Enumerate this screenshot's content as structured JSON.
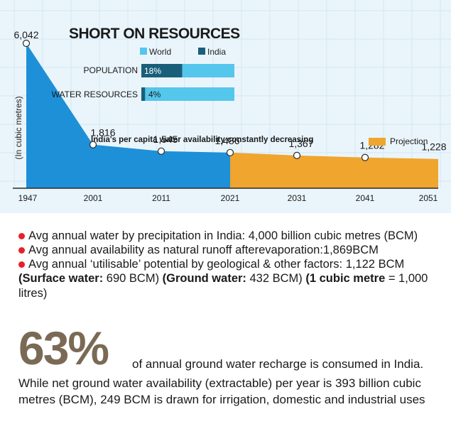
{
  "chart_data": {
    "type": "area",
    "title": "SHORT ON RESOURCES",
    "subtitle": "India's per capita water availability constantly decreasing",
    "ylabel": "(In cubic metres)",
    "x": [
      "1947",
      "2001",
      "2011",
      "2021",
      "2031",
      "2041",
      "2051"
    ],
    "values": [
      6042,
      1816,
      1545,
      1486,
      1367,
      1282,
      1228
    ],
    "value_labels": [
      "6,042",
      "1,816",
      "1,545",
      "1,486",
      "1,367",
      "1,282",
      "1,228"
    ],
    "projection_from": "2021",
    "projection_label": "Projection",
    "ylim": [
      0,
      6042
    ],
    "colors": {
      "actual": "#1e90d8",
      "projection": "#efa52e"
    },
    "inset": {
      "legend": [
        {
          "name": "World",
          "color": "#55c6ec"
        },
        {
          "name": "India",
          "color": "#1a5f7a"
        }
      ],
      "bars": [
        {
          "label": "POPULATION",
          "india_pct": 18,
          "pct_label": "18%"
        },
        {
          "label": "WATER RESOURCES",
          "india_pct": 4,
          "pct_label": "4%"
        }
      ]
    }
  },
  "bullets": [
    "Avg annual water by precipitation in India: 4,000 billion cubic metres (BCM)",
    "Avg annual availability as natural runoff afterevaporation:1,869BCM",
    "Avg annual ‘utilisable’ potential by geological & other factors: 1,122 BCM"
  ],
  "extra": {
    "surface_label": "(Surface water:",
    "surface_value": " 690 BCM)",
    "ground_label": " (Ground water:",
    "ground_value": " 432 BCM)",
    "cubic_label": " (1 cubic metre",
    "cubic_value": " = 1,000 litres)"
  },
  "stat": {
    "big": "63%",
    "text_first": "of annual ground water recharge is consumed in India.",
    "text_rest": "While net ground water availability (extractable) per year is 393 billion cubic metres (BCM), 249 BCM is drawn for irrigation, domestic and industrial uses"
  }
}
